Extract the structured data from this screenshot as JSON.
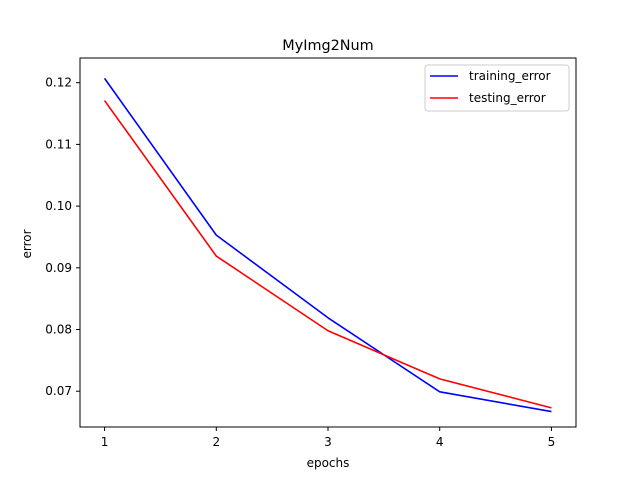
{
  "chart_data": {
    "type": "line",
    "title": "MyImg2Num",
    "xlabel": "epochs",
    "ylabel": "error",
    "x": [
      1,
      2,
      3,
      4,
      5
    ],
    "xlim": [
      0.78,
      5.22
    ],
    "ylim": [
      0.0642,
      0.124
    ],
    "xticks": [
      1,
      2,
      3,
      4,
      5
    ],
    "yticks": [
      0.07,
      0.08,
      0.09,
      0.1,
      0.11,
      0.12
    ],
    "ytick_labels": [
      "0.07",
      "0.08",
      "0.09",
      "0.10",
      "0.11",
      "0.12"
    ],
    "grid": false,
    "legend_position": "top-right",
    "series": [
      {
        "name": "training_error",
        "color": "#0000ff",
        "values": [
          0.1207,
          0.0953,
          0.0819,
          0.0699,
          0.0667
        ]
      },
      {
        "name": "testing_error",
        "color": "#ff0000",
        "values": [
          0.1171,
          0.0919,
          0.0798,
          0.072,
          0.0673
        ]
      }
    ]
  }
}
